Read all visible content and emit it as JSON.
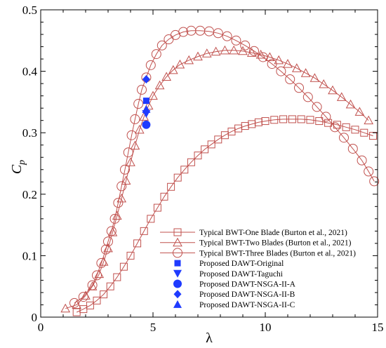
{
  "chart_data": {
    "type": "line",
    "xlabel": "λ",
    "ylabel": "C",
    "ylabel_sub": "p",
    "xlim": [
      0,
      15
    ],
    "ylim": [
      0,
      0.5
    ],
    "xticks": [
      0,
      5,
      10,
      15
    ],
    "yticks": [
      0,
      0.1,
      0.2,
      0.3,
      0.4,
      0.5
    ],
    "xtick_labels": [
      "0",
      "5",
      "10",
      "15"
    ],
    "ytick_labels": [
      "0",
      "0.1",
      "0.2",
      "0.3",
      "0.4",
      "0.5"
    ],
    "grid": false,
    "legend_position": "bottom-center",
    "series": [
      {
        "name": "Typical BWT-One Blade (Burton et al., 2021)",
        "marker": "square-open",
        "color": "#c0504d",
        "x": [
          1.6,
          1.9,
          2.2,
          2.5,
          2.8,
          3.1,
          3.4,
          3.7,
          4.0,
          4.3,
          4.6,
          4.9,
          5.2,
          5.5,
          5.8,
          6.1,
          6.4,
          6.7,
          7.0,
          7.3,
          7.6,
          7.9,
          8.2,
          8.5,
          8.8,
          9.1,
          9.4,
          9.7,
          10.0,
          10.4,
          10.8,
          11.2,
          11.6,
          12.0,
          12.4,
          12.8,
          13.2,
          13.6,
          14.0,
          14.4,
          14.8
        ],
        "y": [
          0.008,
          0.013,
          0.019,
          0.027,
          0.037,
          0.05,
          0.065,
          0.082,
          0.1,
          0.12,
          0.14,
          0.16,
          0.178,
          0.196,
          0.212,
          0.227,
          0.24,
          0.252,
          0.263,
          0.273,
          0.281,
          0.289,
          0.296,
          0.302,
          0.307,
          0.311,
          0.314,
          0.317,
          0.319,
          0.321,
          0.322,
          0.322,
          0.322,
          0.321,
          0.319,
          0.316,
          0.313,
          0.309,
          0.305,
          0.3,
          0.295
        ]
      },
      {
        "name": "Typical BWT-Two Blades (Burton et al., 2021)",
        "marker": "triangle-open",
        "color": "#c0504d",
        "x": [
          1.1,
          1.6,
          2.0,
          2.3,
          2.6,
          2.8,
          3.0,
          3.2,
          3.4,
          3.6,
          3.8,
          4.0,
          4.2,
          4.4,
          4.6,
          4.8,
          5.0,
          5.3,
          5.6,
          5.9,
          6.2,
          6.6,
          7.0,
          7.4,
          7.8,
          8.2,
          8.6,
          9.0,
          9.4,
          9.8,
          10.2,
          10.6,
          11.0,
          11.4,
          11.8,
          12.2,
          12.6,
          13.0,
          13.4,
          13.8,
          14.2,
          14.6
        ],
        "y": [
          0.014,
          0.02,
          0.035,
          0.05,
          0.07,
          0.09,
          0.112,
          0.138,
          0.165,
          0.193,
          0.222,
          0.252,
          0.279,
          0.305,
          0.326,
          0.344,
          0.36,
          0.377,
          0.391,
          0.402,
          0.411,
          0.418,
          0.424,
          0.429,
          0.432,
          0.434,
          0.434,
          0.433,
          0.43,
          0.427,
          0.423,
          0.418,
          0.412,
          0.405,
          0.397,
          0.389,
          0.379,
          0.369,
          0.358,
          0.346,
          0.334,
          0.32
        ]
      },
      {
        "name": "Typical BWT-Three Blades (Burton et al., 2021)",
        "marker": "circle-open",
        "color": "#c0504d",
        "x": [
          1.5,
          1.9,
          2.3,
          2.5,
          2.7,
          2.9,
          3.0,
          3.15,
          3.3,
          3.45,
          3.6,
          3.75,
          3.9,
          4.05,
          4.2,
          4.35,
          4.5,
          4.7,
          4.9,
          5.15,
          5.4,
          5.7,
          6.0,
          6.35,
          6.7,
          7.1,
          7.5,
          7.9,
          8.3,
          8.7,
          9.1,
          9.5,
          9.9,
          10.3,
          10.7,
          11.1,
          11.5,
          11.9,
          12.3,
          12.7,
          13.1,
          13.5,
          13.9,
          14.3,
          14.6,
          14.85
        ],
        "y": [
          0.023,
          0.033,
          0.052,
          0.068,
          0.088,
          0.11,
          0.123,
          0.14,
          0.16,
          0.186,
          0.213,
          0.24,
          0.268,
          0.296,
          0.322,
          0.347,
          0.37,
          0.39,
          0.41,
          0.428,
          0.442,
          0.452,
          0.459,
          0.464,
          0.466,
          0.466,
          0.465,
          0.462,
          0.457,
          0.45,
          0.442,
          0.433,
          0.423,
          0.412,
          0.4,
          0.387,
          0.373,
          0.358,
          0.342,
          0.326,
          0.309,
          0.292,
          0.274,
          0.255,
          0.237,
          0.221
        ]
      },
      {
        "name": "Proposed DAWT-Original",
        "marker": "square-filled",
        "color": "#1f3bff",
        "x": [
          4.7
        ],
        "y": [
          0.352
        ]
      },
      {
        "name": "Proposed DAWT-Taguchi",
        "marker": "triangle-down-filled",
        "color": "#1f3bff",
        "x": [
          4.7
        ],
        "y": [
          0.331
        ]
      },
      {
        "name": "Proposed DAWT-NSGA-II-A",
        "marker": "circle-filled",
        "color": "#1f3bff",
        "x": [
          4.7
        ],
        "y": [
          0.313
        ]
      },
      {
        "name": "Proposed DAWT-NSGA-II-B",
        "marker": "diamond-filled",
        "color": "#1f3bff",
        "x": [
          4.7
        ],
        "y": [
          0.387
        ]
      },
      {
        "name": "Proposed DAWT-NSGA-II-C",
        "marker": "triangle-up-filled",
        "color": "#1f3bff",
        "x": [
          4.7
        ],
        "y": [
          0.338
        ]
      }
    ]
  }
}
